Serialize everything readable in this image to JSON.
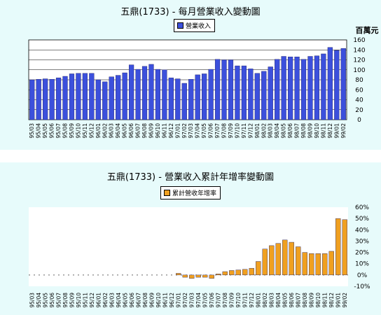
{
  "chart_data": [
    {
      "type": "bar",
      "title": "五鼎(1733) - 每月營業收入變動圖",
      "legend": "營業收入",
      "unit_label": "百萬元",
      "ylim": [
        0,
        160
      ],
      "yticks": [
        0,
        20,
        40,
        60,
        80,
        100,
        120,
        140,
        160
      ],
      "color": "#3c50dc",
      "categories": [
        "95/03",
        "95/04",
        "95/05",
        "95/06",
        "95/07",
        "95/08",
        "95/09",
        "95/10",
        "95/11",
        "95/12",
        "96/01",
        "96/02",
        "96/03",
        "96/04",
        "96/05",
        "96/06",
        "96/07",
        "96/08",
        "96/09",
        "96/10",
        "96/11",
        "96/12",
        "97/01",
        "97/02",
        "97/03",
        "97/04",
        "97/05",
        "97/06",
        "97/07",
        "97/08",
        "97/09",
        "97/10",
        "97/11",
        "97/12",
        "98/01",
        "98/02",
        "98/03",
        "98/04",
        "98/05",
        "98/06",
        "98/07",
        "98/08",
        "98/09",
        "98/10",
        "98/11",
        "98/12",
        "99/01",
        "99/02"
      ],
      "values": [
        80,
        81,
        82,
        81,
        84,
        87,
        92,
        93,
        93,
        93,
        80,
        76,
        86,
        89,
        94,
        110,
        101,
        107,
        111,
        101,
        100,
        84,
        82,
        73,
        81,
        90,
        92,
        101,
        121,
        120,
        120,
        108,
        108,
        102,
        93,
        97,
        106,
        121,
        127,
        126,
        126,
        121,
        127,
        128,
        132,
        145,
        139,
        143
      ]
    },
    {
      "type": "bar",
      "title": "五鼎(1733) -  營業收入累計年增率變動圖",
      "legend": "累計營收年增率",
      "ylim": [
        -10,
        60
      ],
      "yticks": [
        -10,
        0,
        10,
        20,
        30,
        40,
        50,
        60
      ],
      "ytick_labels": [
        "-10%",
        "0%",
        "10%",
        "20%",
        "30%",
        "40%",
        "50%",
        "60%"
      ],
      "color": "#f0a020",
      "categories": [
        "95/03",
        "95/04",
        "95/05",
        "95/06",
        "95/07",
        "95/08",
        "95/09",
        "95/10",
        "95/11",
        "95/12",
        "96/01",
        "96/02",
        "96/03",
        "96/04",
        "96/05",
        "96/06",
        "96/07",
        "96/08",
        "96/09",
        "96/10",
        "96/11",
        "96/12",
        "97/01",
        "97/02",
        "97/03",
        "97/04",
        "97/05",
        "97/06",
        "97/07",
        "97/08",
        "97/09",
        "97/10",
        "97/11",
        "97/12",
        "98/01",
        "98/02",
        "98/03",
        "98/04",
        "98/05",
        "98/06",
        "98/07",
        "98/08",
        "98/09",
        "98/10",
        "98/11",
        "98/12",
        "99/01",
        "99/02"
      ],
      "values": [
        null,
        null,
        null,
        null,
        null,
        null,
        null,
        null,
        null,
        null,
        null,
        null,
        null,
        null,
        null,
        null,
        null,
        null,
        null,
        null,
        null,
        null,
        1.5,
        -2,
        -3,
        -2,
        -2,
        -3,
        1,
        3,
        4,
        4.5,
        5,
        6,
        12,
        23,
        26,
        28,
        31,
        29,
        25,
        20,
        19,
        19,
        19,
        21,
        50,
        49
      ]
    }
  ]
}
